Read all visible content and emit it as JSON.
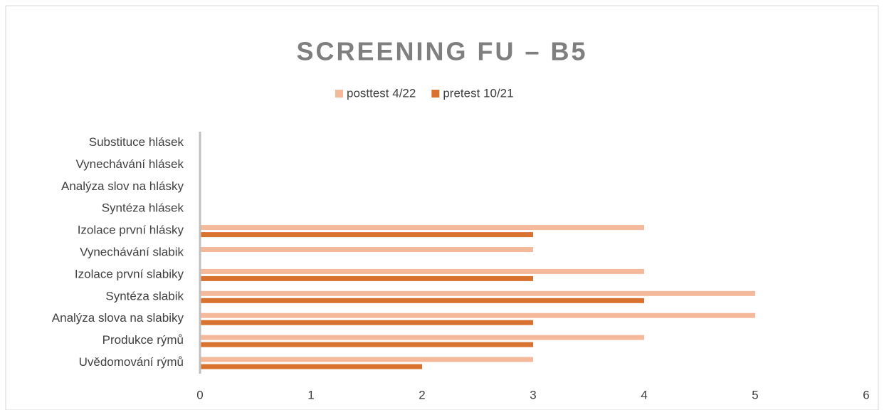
{
  "chart_data": {
    "type": "barh",
    "title": "SCREENING FU – B5",
    "categories": [
      "Uvědomování rýmů",
      "Produkce rýmů",
      "Analýza slova na slabiky",
      "Syntéza slabik",
      "Izolace první slabiky",
      "Vynechávání slabik",
      "Izolace první hlásky",
      "Syntéza hlásek",
      "Analýza slov na hlásky",
      "Vynechávání hlásek",
      "Substituce hlásek"
    ],
    "series": [
      {
        "name": "posttest 4/22",
        "color": "#f4b89a",
        "values": [
          3,
          4,
          5,
          5,
          4,
          3,
          4,
          null,
          null,
          null,
          null
        ]
      },
      {
        "name": "pretest 10/21",
        "color": "#d9712f",
        "values": [
          2,
          3,
          3,
          4,
          3,
          null,
          3,
          null,
          null,
          null,
          null
        ]
      }
    ],
    "xlim": [
      0,
      6
    ],
    "xticks": [
      0,
      1,
      2,
      3,
      4,
      5,
      6
    ],
    "grid": false,
    "legend": "top"
  }
}
